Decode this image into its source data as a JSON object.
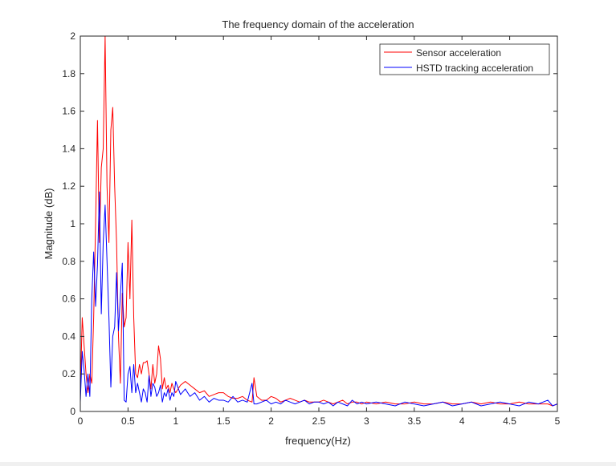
{
  "chart_data": {
    "type": "line",
    "title": "The frequency domain of the acceleration",
    "xlabel": "frequency(Hz)",
    "ylabel": "Magnitude (dB)",
    "xlim": [
      0,
      5
    ],
    "ylim": [
      0,
      2
    ],
    "xticks": [
      0,
      0.5,
      1,
      1.5,
      2,
      2.5,
      3,
      3.5,
      4,
      4.5,
      5
    ],
    "xtick_labels": [
      "0",
      "0.5",
      "1",
      "1.5",
      "2",
      "2.5",
      "3",
      "3.5",
      "4",
      "4.5",
      "5"
    ],
    "yticks": [
      0,
      0.2,
      0.4,
      0.6,
      0.8,
      1,
      1.2,
      1.4,
      1.6,
      1.8,
      2
    ],
    "ytick_labels": [
      "0",
      "0.2",
      "0.4",
      "0.6",
      "0.8",
      "1",
      "1.2",
      "1.4",
      "1.6",
      "1.8",
      "2"
    ],
    "grid": false,
    "legend_position": "top-right",
    "series": [
      {
        "name": "Sensor acceleration",
        "color": "#ff0000",
        "x": [
          0,
          0.02,
          0.04,
          0.06,
          0.08,
          0.1,
          0.12,
          0.14,
          0.16,
          0.18,
          0.2,
          0.22,
          0.24,
          0.26,
          0.28,
          0.3,
          0.32,
          0.34,
          0.36,
          0.38,
          0.4,
          0.42,
          0.44,
          0.46,
          0.48,
          0.5,
          0.52,
          0.54,
          0.56,
          0.58,
          0.6,
          0.62,
          0.64,
          0.66,
          0.68,
          0.7,
          0.72,
          0.74,
          0.76,
          0.78,
          0.8,
          0.82,
          0.84,
          0.86,
          0.88,
          0.9,
          0.92,
          0.94,
          0.96,
          0.98,
          1,
          1.05,
          1.1,
          1.15,
          1.2,
          1.25,
          1.3,
          1.35,
          1.4,
          1.45,
          1.5,
          1.55,
          1.6,
          1.65,
          1.7,
          1.75,
          1.8,
          1.82,
          1.85,
          1.9,
          1.95,
          2,
          2.05,
          2.1,
          2.15,
          2.2,
          2.25,
          2.3,
          2.35,
          2.4,
          2.45,
          2.5,
          2.55,
          2.6,
          2.65,
          2.7,
          2.75,
          2.8,
          2.85,
          2.9,
          2.95,
          3,
          3.1,
          3.2,
          3.3,
          3.4,
          3.5,
          3.6,
          3.7,
          3.8,
          3.9,
          4,
          4.1,
          4.2,
          4.3,
          4.4,
          4.5,
          4.6,
          4.7,
          4.8,
          4.9,
          4.95,
          5
        ],
        "values": [
          0.1,
          0.5,
          0.35,
          0.2,
          0.1,
          0.2,
          0.15,
          0.5,
          1.0,
          1.55,
          0.9,
          1.3,
          1.4,
          2.0,
          1.2,
          0.9,
          1.5,
          1.62,
          1.2,
          0.9,
          0.4,
          0.15,
          0.63,
          0.45,
          0.5,
          0.9,
          0.6,
          1.02,
          0.5,
          0.2,
          0.18,
          0.25,
          0.2,
          0.26,
          0.26,
          0.27,
          0.2,
          0.12,
          0.25,
          0.15,
          0.2,
          0.35,
          0.28,
          0.12,
          0.18,
          0.12,
          0.14,
          0.1,
          0.15,
          0.12,
          0.1,
          0.14,
          0.16,
          0.14,
          0.12,
          0.1,
          0.11,
          0.08,
          0.09,
          0.1,
          0.1,
          0.08,
          0.07,
          0.07,
          0.08,
          0.06,
          0.05,
          0.18,
          0.08,
          0.06,
          0.06,
          0.08,
          0.07,
          0.05,
          0.06,
          0.07,
          0.06,
          0.05,
          0.06,
          0.05,
          0.05,
          0.05,
          0.06,
          0.05,
          0.04,
          0.05,
          0.06,
          0.04,
          0.05,
          0.05,
          0.04,
          0.05,
          0.04,
          0.05,
          0.04,
          0.04,
          0.05,
          0.04,
          0.04,
          0.05,
          0.04,
          0.04,
          0.05,
          0.04,
          0.05,
          0.04,
          0.04,
          0.05,
          0.04,
          0.04,
          0.04,
          0.03,
          0.04
        ]
      },
      {
        "name": "HSTD tracking acceleration",
        "color": "#0000ff",
        "x": [
          0,
          0.02,
          0.04,
          0.06,
          0.08,
          0.1,
          0.12,
          0.14,
          0.16,
          0.18,
          0.2,
          0.22,
          0.24,
          0.26,
          0.28,
          0.3,
          0.32,
          0.34,
          0.36,
          0.38,
          0.4,
          0.42,
          0.44,
          0.46,
          0.48,
          0.5,
          0.52,
          0.54,
          0.56,
          0.58,
          0.6,
          0.62,
          0.64,
          0.66,
          0.68,
          0.7,
          0.72,
          0.74,
          0.76,
          0.78,
          0.8,
          0.82,
          0.84,
          0.86,
          0.88,
          0.9,
          0.92,
          0.94,
          0.96,
          0.98,
          1,
          1.05,
          1.1,
          1.15,
          1.2,
          1.25,
          1.3,
          1.35,
          1.4,
          1.45,
          1.5,
          1.55,
          1.6,
          1.65,
          1.7,
          1.75,
          1.8,
          1.82,
          1.85,
          1.9,
          1.95,
          2,
          2.05,
          2.1,
          2.15,
          2.2,
          2.25,
          2.3,
          2.35,
          2.4,
          2.45,
          2.5,
          2.55,
          2.6,
          2.65,
          2.7,
          2.75,
          2.8,
          2.85,
          2.9,
          2.95,
          3,
          3.1,
          3.2,
          3.3,
          3.4,
          3.5,
          3.6,
          3.7,
          3.8,
          3.9,
          4,
          4.1,
          4.2,
          4.3,
          4.4,
          4.5,
          4.6,
          4.7,
          4.8,
          4.9,
          4.95,
          5
        ],
        "values": [
          0.05,
          0.32,
          0.22,
          0.08,
          0.2,
          0.08,
          0.6,
          0.85,
          0.56,
          0.78,
          1.17,
          0.52,
          0.9,
          1.1,
          0.8,
          0.5,
          0.13,
          0.4,
          0.45,
          0.74,
          0.43,
          0.62,
          0.79,
          0.06,
          0.05,
          0.2,
          0.24,
          0.1,
          0.25,
          0.1,
          0.15,
          0.1,
          0.05,
          0.12,
          0.1,
          0.05,
          0.19,
          0.08,
          0.15,
          0.13,
          0.08,
          0.1,
          0.14,
          0.05,
          0.1,
          0.08,
          0.12,
          0.06,
          0.1,
          0.08,
          0.16,
          0.09,
          0.12,
          0.08,
          0.1,
          0.06,
          0.08,
          0.05,
          0.07,
          0.06,
          0.06,
          0.05,
          0.08,
          0.05,
          0.06,
          0.05,
          0.15,
          0.04,
          0.04,
          0.05,
          0.06,
          0.04,
          0.05,
          0.04,
          0.06,
          0.05,
          0.04,
          0.05,
          0.06,
          0.04,
          0.05,
          0.05,
          0.04,
          0.05,
          0.03,
          0.05,
          0.04,
          0.03,
          0.06,
          0.04,
          0.05,
          0.04,
          0.05,
          0.04,
          0.03,
          0.05,
          0.04,
          0.03,
          0.04,
          0.05,
          0.03,
          0.04,
          0.05,
          0.03,
          0.04,
          0.05,
          0.04,
          0.03,
          0.05,
          0.04,
          0.06,
          0.03,
          0.04
        ]
      }
    ]
  }
}
